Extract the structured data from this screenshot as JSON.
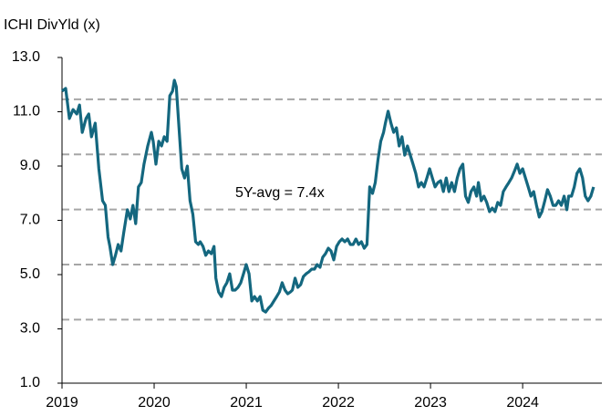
{
  "chart_data": {
    "type": "line",
    "title": "ICHI DivYld (x)",
    "annotation": "5Y-avg = 7.4x",
    "x": [
      2019.0,
      2019.04,
      2019.08,
      2019.12,
      2019.16,
      2019.19,
      2019.22,
      2019.26,
      2019.29,
      2019.32,
      2019.36,
      2019.4,
      2019.44,
      2019.47,
      2019.5,
      2019.52,
      2019.55,
      2019.58,
      2019.61,
      2019.64,
      2019.67,
      2019.71,
      2019.74,
      2019.77,
      2019.8,
      2019.83,
      2019.86,
      2019.89,
      2019.93,
      2019.97,
      2019.99,
      2020.02,
      2020.05,
      2020.08,
      2020.11,
      2020.14,
      2020.17,
      2020.2,
      2020.22,
      2020.24,
      2020.27,
      2020.3,
      2020.33,
      2020.36,
      2020.39,
      2020.42,
      2020.45,
      2020.48,
      2020.5,
      2020.53,
      2020.56,
      2020.59,
      2020.62,
      2020.65,
      2020.67,
      2020.7,
      2020.73,
      2020.76,
      2020.79,
      2020.82,
      2020.85,
      2020.88,
      2020.91,
      2020.94,
      2020.97,
      2021.0,
      2021.03,
      2021.06,
      2021.09,
      2021.12,
      2021.15,
      2021.18,
      2021.21,
      2021.24,
      2021.27,
      2021.3,
      2021.33,
      2021.36,
      2021.39,
      2021.42,
      2021.45,
      2021.48,
      2021.5,
      2021.53,
      2021.56,
      2021.59,
      2021.62,
      2021.65,
      2021.68,
      2021.71,
      2021.74,
      2021.77,
      2021.8,
      2021.83,
      2021.86,
      2021.89,
      2021.92,
      2021.95,
      2021.98,
      2022.01,
      2022.04,
      2022.07,
      2022.1,
      2022.13,
      2022.16,
      2022.19,
      2022.22,
      2022.25,
      2022.28,
      2022.31,
      2022.34,
      2022.37,
      2022.4,
      2022.43,
      2022.46,
      2022.49,
      2022.51,
      2022.54,
      2022.57,
      2022.6,
      2022.63,
      2022.66,
      2022.69,
      2022.72,
      2022.75,
      2022.78,
      2022.81,
      2022.84,
      2022.87,
      2022.9,
      2022.93,
      2022.96,
      2022.99,
      2023.02,
      2023.05,
      2023.08,
      2023.11,
      2023.14,
      2023.17,
      2023.2,
      2023.23,
      2023.26,
      2023.29,
      2023.32,
      2023.35,
      2023.38,
      2023.41,
      2023.44,
      2023.47,
      2023.5,
      2023.52,
      2023.55,
      2023.58,
      2023.61,
      2023.64,
      2023.67,
      2023.7,
      2023.73,
      2023.76,
      2023.79,
      2023.82,
      2023.85,
      2023.88,
      2023.91,
      2023.94,
      2023.97,
      2024.0,
      2024.03,
      2024.06,
      2024.09,
      2024.12,
      2024.15,
      2024.18,
      2024.21,
      2024.24,
      2024.27,
      2024.3,
      2024.33,
      2024.36,
      2024.39,
      2024.42,
      2024.45,
      2024.48,
      2024.5,
      2024.53,
      2024.56,
      2024.59,
      2024.62,
      2024.65,
      2024.68,
      2024.71,
      2024.74,
      2024.77
    ],
    "series": [
      {
        "color": "#14677f",
        "values": [
          11.76,
          11.86,
          10.75,
          11.08,
          10.92,
          11.25,
          10.24,
          10.75,
          10.92,
          10.08,
          10.58,
          8.9,
          7.72,
          7.55,
          6.38,
          6.04,
          5.37,
          5.71,
          6.11,
          5.87,
          6.55,
          7.39,
          7.05,
          7.55,
          6.88,
          8.23,
          8.39,
          9.07,
          9.74,
          10.24,
          9.91,
          9.07,
          9.91,
          9.74,
          10.08,
          9.91,
          11.59,
          11.76,
          12.16,
          11.92,
          10.41,
          8.9,
          8.56,
          9.0,
          7.72,
          7.22,
          6.21,
          6.11,
          6.21,
          6.04,
          5.71,
          5.87,
          5.77,
          6.04,
          4.87,
          4.36,
          4.19,
          4.53,
          4.7,
          5.03,
          4.43,
          4.43,
          4.53,
          4.7,
          5.03,
          5.37,
          5.03,
          4.03,
          4.19,
          4.03,
          4.19,
          3.69,
          3.62,
          3.76,
          3.86,
          4.03,
          4.19,
          4.36,
          4.7,
          4.43,
          4.29,
          4.36,
          4.43,
          4.87,
          4.53,
          4.63,
          4.93,
          5.03,
          5.1,
          5.2,
          5.2,
          5.37,
          5.27,
          5.64,
          5.77,
          5.97,
          5.87,
          5.54,
          6.04,
          6.21,
          6.31,
          6.21,
          6.31,
          6.11,
          6.11,
          6.31,
          6.11,
          6.21,
          5.97,
          6.11,
          8.23,
          7.99,
          8.39,
          9.24,
          9.91,
          10.24,
          10.58,
          11.02,
          10.58,
          10.24,
          10.41,
          9.74,
          10.08,
          9.4,
          9.74,
          9.4,
          9.07,
          8.73,
          8.23,
          8.39,
          8.23,
          8.56,
          8.9,
          8.56,
          8.23,
          8.39,
          8.46,
          8.06,
          8.56,
          8.06,
          8.39,
          8.06,
          8.56,
          8.9,
          9.07,
          7.89,
          7.66,
          8.06,
          8.23,
          7.89,
          8.39,
          7.72,
          7.89,
          7.66,
          7.32,
          7.45,
          7.32,
          7.66,
          7.55,
          8.06,
          8.23,
          8.39,
          8.56,
          8.8,
          9.07,
          8.73,
          8.9,
          8.56,
          8.23,
          7.89,
          8.06,
          7.55,
          7.12,
          7.32,
          7.72,
          8.13,
          7.89,
          7.55,
          7.55,
          7.72,
          7.55,
          7.89,
          7.39,
          7.89,
          7.89,
          8.23,
          8.73,
          8.9,
          8.56,
          7.89,
          7.72,
          7.89,
          8.23
        ]
      }
    ],
    "reference_lines": [
      11.46,
      9.43,
      7.4,
      5.37,
      3.34
    ],
    "reference_color": "#a6a6a6",
    "xlim": [
      2019,
      2024.86
    ],
    "xticks": [
      2019,
      2020,
      2021,
      2022,
      2023,
      2024
    ],
    "ylim": [
      1,
      13
    ],
    "yticks": [
      {
        "value": 1,
        "label": "1.0"
      },
      {
        "value": 3,
        "label": "3.0"
      },
      {
        "value": 5,
        "label": "5.0"
      },
      {
        "value": 7,
        "label": "7.0"
      },
      {
        "value": 9,
        "label": "9.0"
      },
      {
        "value": 11,
        "label": "11.0"
      },
      {
        "value": 13,
        "label": "13.0"
      }
    ]
  }
}
